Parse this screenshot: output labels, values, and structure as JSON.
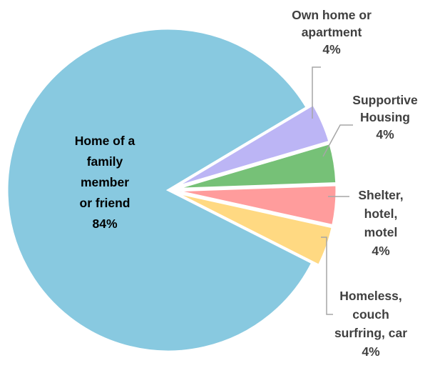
{
  "chart_data": {
    "type": "pie",
    "title": "",
    "slices": [
      {
        "label": "Home of a family member or friend",
        "label_lines": [
          "Home of a",
          "family",
          "member",
          "or friend"
        ],
        "value": 84,
        "value_label": "84%",
        "color": "#88C9E0"
      },
      {
        "label": "Own home or apartment",
        "label_lines": [
          "Own home or",
          "apartment"
        ],
        "value": 4,
        "value_label": "4%",
        "color": "#BCB5F5"
      },
      {
        "label": "Supportive Housing",
        "label_lines": [
          "Supportive",
          "Housing"
        ],
        "value": 4,
        "value_label": "4%",
        "color": "#76C177"
      },
      {
        "label": "Shelter, hotel, motel",
        "label_lines": [
          "Shelter,",
          "hotel,",
          "motel"
        ],
        "value": 4,
        "value_label": "4%",
        "color": "#FF9C9C"
      },
      {
        "label": "Homeless, couch surfring, car",
        "label_lines": [
          "Homeless,",
          "couch",
          "surfring, car"
        ],
        "value": 4,
        "value_label": "4%",
        "color": "#FFD982"
      }
    ],
    "legend": "none",
    "data_labels": "category name and percentage"
  }
}
